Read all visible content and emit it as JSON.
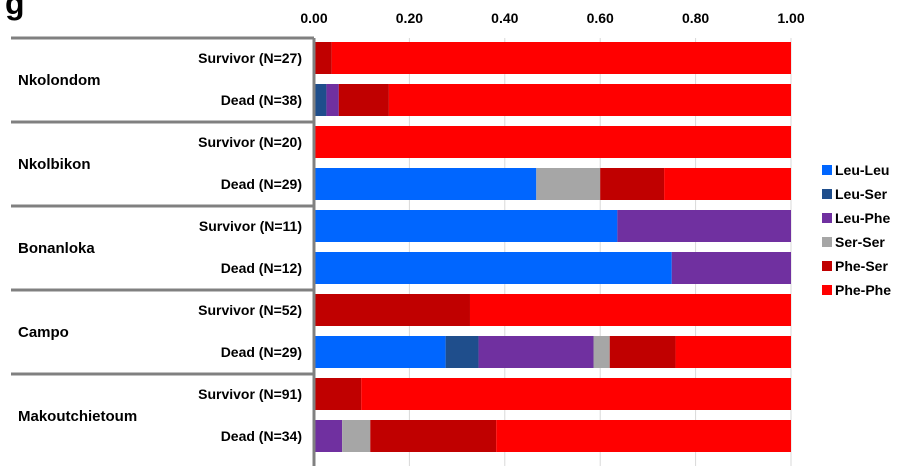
{
  "title_fragment": "g",
  "colors": {
    "Leu-Leu": "#0066ff",
    "Leu-Ser": "#1f4e8c",
    "Leu-Phe": "#7030a0",
    "Ser-Ser": "#a6a6a6",
    "Phe-Ser": "#c00000",
    "Phe-Phe": "#ff0000"
  },
  "chart_data": {
    "type": "bar",
    "orientation": "horizontal",
    "stacked": true,
    "xlim": [
      0,
      1
    ],
    "xticks": [
      "0.00",
      "0.20",
      "0.40",
      "0.60",
      "0.80",
      "1.00"
    ],
    "legend_position": "right",
    "grid": true,
    "series_names": [
      "Leu-Leu",
      "Leu-Ser",
      "Leu-Phe",
      "Ser-Ser",
      "Phe-Ser",
      "Phe-Phe"
    ],
    "groups": [
      {
        "name": "Nkolondom",
        "bars": [
          {
            "label": "Survivor (N=27)",
            "values": [
              0,
              0,
              0,
              0,
              0.037,
              0.963
            ]
          },
          {
            "label": "Dead (N=38)",
            "values": [
              0,
              0.026,
              0.026,
              0,
              0.105,
              0.843
            ]
          }
        ]
      },
      {
        "name": "Nkolbikon",
        "bars": [
          {
            "label": "Survivor (N=20)",
            "values": [
              0,
              0,
              0,
              0,
              0,
              1.0
            ]
          },
          {
            "label": "Dead (N=29)",
            "values": [
              0.466,
              0,
              0,
              0.134,
              0.134,
              0.266
            ]
          }
        ]
      },
      {
        "name": "Bonanloka",
        "bars": [
          {
            "label": "Survivor (N=11)",
            "values": [
              0.636,
              0,
              0.364,
              0,
              0,
              0
            ]
          },
          {
            "label": "Dead (N=12)",
            "values": [
              0.75,
              0,
              0.25,
              0,
              0,
              0
            ]
          }
        ]
      },
      {
        "name": "Campo",
        "bars": [
          {
            "label": "Survivor (N=52)",
            "values": [
              0,
              0,
              0,
              0,
              0.327,
              0.673
            ]
          },
          {
            "label": "Dead (N=29)",
            "values": [
              0.276,
              0.069,
              0.241,
              0.034,
              0.138,
              0.242
            ]
          }
        ]
      },
      {
        "name": "Makoutchietoum",
        "bars": [
          {
            "label": "Survivor (N=91)",
            "values": [
              0,
              0,
              0,
              0,
              0.099,
              0.901
            ]
          },
          {
            "label": "Dead (N=34)",
            "values": [
              0,
              0,
              0.059,
              0.059,
              0.264,
              0.618
            ]
          }
        ]
      }
    ]
  }
}
